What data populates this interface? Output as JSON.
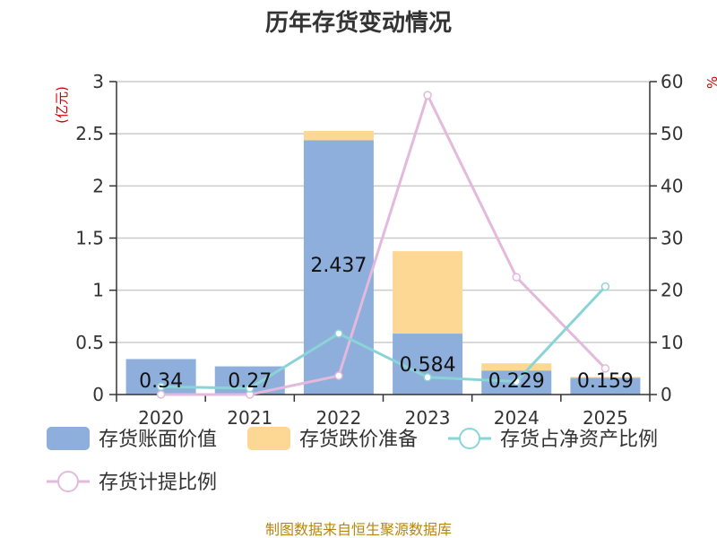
{
  "title": "历年存货变动情况",
  "source": "制图数据来自恒生聚源数据库",
  "left_unit": "(亿元)",
  "right_unit": "%",
  "colors": {
    "book_value": "#8eafdc",
    "impairment": "#fdd794",
    "ratio_line": "#8ad4d8",
    "provision_line": "#e3b9dc"
  },
  "chart_data": {
    "type": "bar",
    "categories": [
      "2020",
      "2021",
      "2022",
      "2023",
      "2024",
      "2025"
    ],
    "series": [
      {
        "name": "存货账面价值",
        "type": "bar",
        "stack": "inv",
        "axis": "left",
        "values": [
          0.34,
          0.27,
          2.437,
          0.584,
          0.229,
          0.159
        ],
        "labels": [
          "0.34",
          "0.27",
          "2.437",
          "0.584",
          "0.229",
          "0.159"
        ]
      },
      {
        "name": "存货跌价准备",
        "type": "bar",
        "stack": "inv",
        "axis": "left",
        "values": [
          0.0,
          0.0,
          0.09,
          0.79,
          0.07,
          0.01
        ]
      },
      {
        "name": "存货占净资产比例",
        "type": "line",
        "axis": "right",
        "values": [
          1.5,
          1.2,
          11.7,
          3.3,
          2.5,
          20.7
        ]
      },
      {
        "name": "存货计提比例",
        "type": "line",
        "axis": "right",
        "values": [
          0.0,
          0.0,
          3.6,
          57.4,
          22.5,
          5.0
        ]
      }
    ],
    "left_axis": {
      "min": 0,
      "max": 3,
      "ticks": [
        "0",
        "0.5",
        "1",
        "1.5",
        "2",
        "2.5",
        "3"
      ]
    },
    "right_axis": {
      "min": 0,
      "max": 60,
      "ticks": [
        "0",
        "10",
        "20",
        "30",
        "40",
        "50",
        "60"
      ]
    },
    "grid": true,
    "legend": "bottom"
  }
}
